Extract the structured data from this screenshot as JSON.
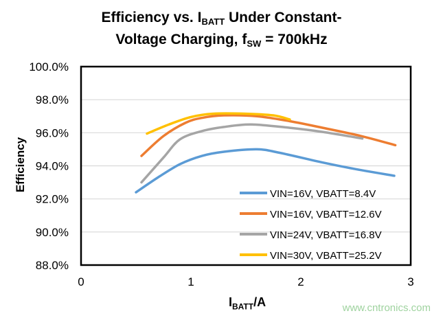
{
  "chart_data": {
    "type": "line",
    "title_line1": "Efficiency vs. I",
    "title_sub1": "BATT",
    "title_line1_rest": " Under Constant-",
    "title_line2": "Voltage Charging, f",
    "title_sub2": "SW",
    "title_line2_rest": " = 700kHz",
    "xlabel": "I",
    "xlabel_sub": "BATT",
    "xlabel_rest": "/A",
    "ylabel": "Efficiency",
    "xlim": [
      0,
      3
    ],
    "ylim": [
      88,
      100
    ],
    "xticks": [
      "0",
      "1",
      "2",
      "3"
    ],
    "yticks": [
      "100.0%",
      "98.0%",
      "96.0%",
      "94.0%",
      "92.0%",
      "90.0%",
      "88.0%"
    ],
    "grid": "horizontal",
    "legend_position": "bottom-right inside",
    "series": [
      {
        "name": "VIN=16V, VBATT=8.4V",
        "color": "#5B9BD5",
        "x": [
          0.5,
          0.7,
          0.9,
          1.1,
          1.3,
          1.6,
          1.8,
          2.2,
          2.5,
          2.85
        ],
        "y": [
          92.4,
          93.3,
          94.1,
          94.6,
          94.85,
          95.0,
          94.8,
          94.2,
          93.8,
          93.4
        ]
      },
      {
        "name": "VIN=16V, VBATT=12.6V",
        "color": "#ED7D31",
        "x": [
          0.55,
          0.75,
          0.95,
          1.1,
          1.3,
          1.6,
          1.9,
          2.2,
          2.55,
          2.86
        ],
        "y": [
          94.6,
          95.8,
          96.6,
          96.9,
          97.05,
          97.0,
          96.7,
          96.3,
          95.8,
          95.25
        ]
      },
      {
        "name": "VIN=24V, VBATT=16.8V",
        "color": "#A5A5A5",
        "x": [
          0.55,
          0.75,
          0.9,
          1.1,
          1.3,
          1.55,
          1.9,
          2.2,
          2.56
        ],
        "y": [
          93.0,
          94.5,
          95.6,
          96.1,
          96.35,
          96.5,
          96.3,
          96.05,
          95.65
        ]
      },
      {
        "name": "VIN=30V, VBATT=25.2V",
        "color": "#FFC000",
        "x": [
          0.6,
          0.8,
          1.0,
          1.2,
          1.5,
          1.75,
          1.9
        ],
        "y": [
          95.95,
          96.5,
          96.95,
          97.15,
          97.15,
          97.05,
          96.8
        ]
      }
    ]
  },
  "watermark": "www.cntronics.com"
}
